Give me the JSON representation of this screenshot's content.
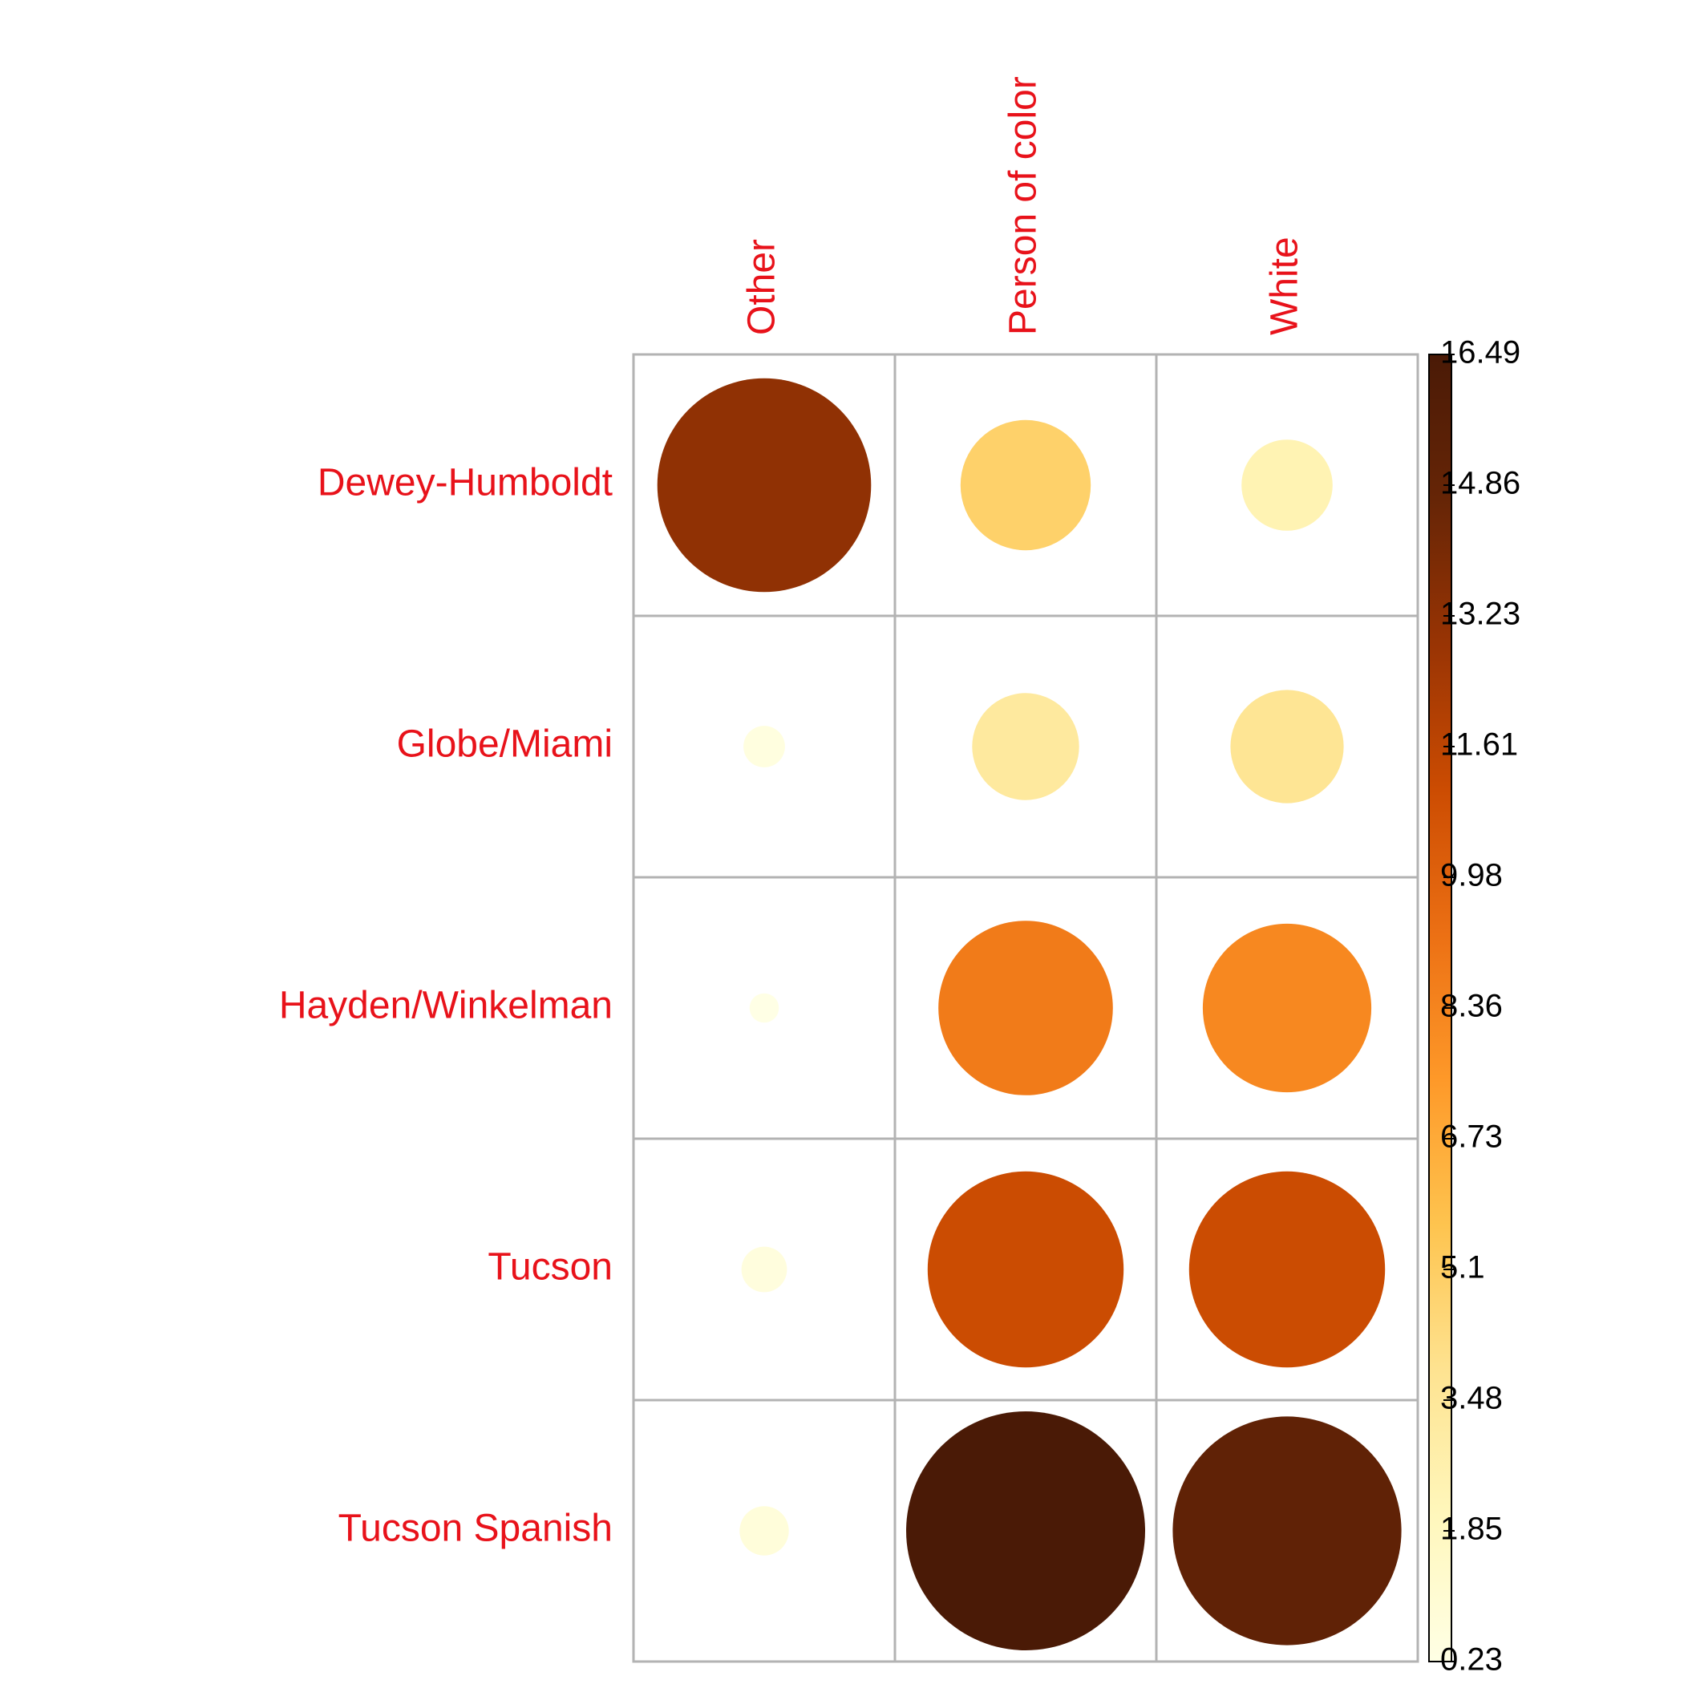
{
  "chart_data": {
    "type": "heatmap",
    "title": "",
    "xlabel": "",
    "ylabel": "",
    "columns": [
      "Other",
      "Person of color",
      "White"
    ],
    "rows": [
      "Dewey-Humboldt",
      "Globe/Miami",
      "Hayden/Winkelman",
      "Tucson",
      "Tucson Spanish"
    ],
    "values": [
      [
        13.2,
        4.9,
        2.4
      ],
      [
        0.5,
        3.3,
        3.7
      ],
      [
        0.25,
        8.8,
        8.2
      ],
      [
        0.6,
        11.1,
        11.1
      ],
      [
        0.7,
        16.49,
        15.1
      ]
    ],
    "marker": "circle",
    "grid": true,
    "legend": {
      "type": "colorbar",
      "placement": "right",
      "min": 0.23,
      "max": 16.49,
      "ticks": [
        "16.49",
        "14.86",
        "13.23",
        "11.61",
        "9.98",
        "8.36",
        "6.73",
        "5.1",
        "3.48",
        "1.85",
        "0.23"
      ]
    },
    "colors": {
      "label": "#e8121a",
      "grid": "#b3b3b3",
      "scale": [
        "#ffffe5",
        "#fff7bc",
        "#fee391",
        "#fec44f",
        "#fe9929",
        "#ec7014",
        "#cc4c02",
        "#993404",
        "#662506",
        "#4a1a06"
      ]
    }
  }
}
